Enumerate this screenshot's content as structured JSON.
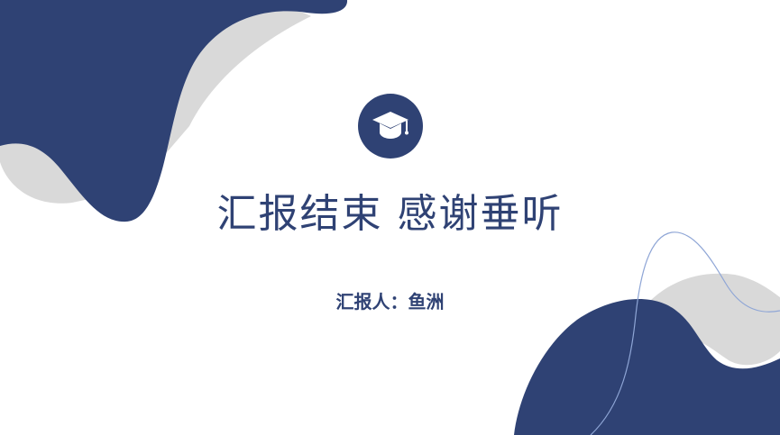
{
  "slide": {
    "title": "汇报结束 感谢垂听",
    "reporter": "汇报人：鱼洲"
  },
  "icons": {
    "center_icon": "graduation-cap-icon"
  },
  "colors": {
    "primary": "#2f4274",
    "secondary": "#d9d9d9",
    "line": "#8fa6d6",
    "background": "#ffffff",
    "icon_fill": "#ffffff"
  }
}
